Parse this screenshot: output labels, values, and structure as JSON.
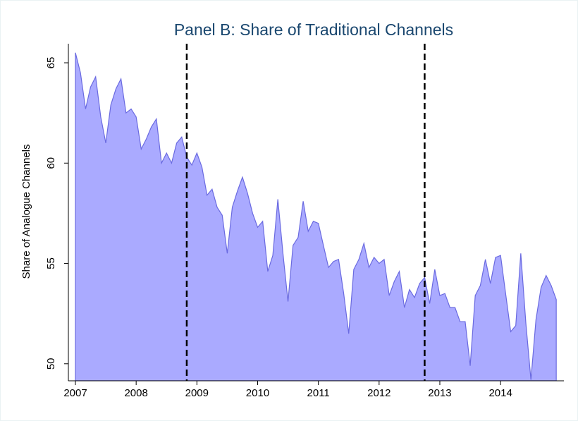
{
  "chart_data": {
    "type": "area",
    "title": "Panel B: Share of Traditional Channels",
    "y_label": "Share of Analogue Channels",
    "color": "#aaaaff",
    "line_color": "#6a6ae0",
    "x": [
      2007,
      2007.083,
      2007.167,
      2007.25,
      2007.333,
      2007.417,
      2007.5,
      2007.583,
      2007.667,
      2007.75,
      2007.833,
      2007.917,
      2008,
      2008.083,
      2008.167,
      2008.25,
      2008.333,
      2008.417,
      2008.5,
      2008.583,
      2008.667,
      2008.75,
      2008.833,
      2008.917,
      2009,
      2009.083,
      2009.167,
      2009.25,
      2009.333,
      2009.417,
      2009.5,
      2009.583,
      2009.667,
      2009.75,
      2009.833,
      2009.917,
      2010,
      2010.083,
      2010.167,
      2010.25,
      2010.333,
      2010.417,
      2010.5,
      2010.583,
      2010.667,
      2010.75,
      2010.833,
      2010.917,
      2011,
      2011.083,
      2011.167,
      2011.25,
      2011.333,
      2011.417,
      2011.5,
      2011.583,
      2011.667,
      2011.75,
      2011.833,
      2011.917,
      2012,
      2012.083,
      2012.167,
      2012.25,
      2012.333,
      2012.417,
      2012.5,
      2012.583,
      2012.667,
      2012.75,
      2012.833,
      2012.917,
      2013,
      2013.083,
      2013.167,
      2013.25,
      2013.333,
      2013.417,
      2013.5,
      2013.583,
      2013.667,
      2013.75,
      2013.833,
      2013.917,
      2014,
      2014.083,
      2014.167,
      2014.25,
      2014.333,
      2014.417,
      2014.5,
      2014.583,
      2014.667,
      2014.75,
      2014.833,
      2014.917
    ],
    "values": [
      65.5,
      64.5,
      62.7,
      63.8,
      64.3,
      62.3,
      61.0,
      62.9,
      63.7,
      64.2,
      62.5,
      62.7,
      62.3,
      60.7,
      61.2,
      61.8,
      62.2,
      60.0,
      60.5,
      60.0,
      61.0,
      61.3,
      60.3,
      59.9,
      60.5,
      59.8,
      58.4,
      58.7,
      57.8,
      57.4,
      55.5,
      57.8,
      58.6,
      59.3,
      58.5,
      57.5,
      56.8,
      57.1,
      54.6,
      55.4,
      58.2,
      55.5,
      53.1,
      55.9,
      56.3,
      58.1,
      56.6,
      57.1,
      57.0,
      55.9,
      54.8,
      55.1,
      55.2,
      53.5,
      51.5,
      54.7,
      55.2,
      56.0,
      54.8,
      55.3,
      55.0,
      55.2,
      53.4,
      54.1,
      54.6,
      52.8,
      53.7,
      53.3,
      54.0,
      54.3,
      53.0,
      54.7,
      53.4,
      53.5,
      52.8,
      52.8,
      52.1,
      52.1,
      49.9,
      53.4,
      53.9,
      55.2,
      54.0,
      55.3,
      55.4,
      53.5,
      51.6,
      51.9,
      55.5,
      52.0,
      49.2,
      52.2,
      53.8,
      54.4,
      53.9,
      53.2
    ],
    "reference_lines": [
      2008.833,
      2012.75
    ],
    "xlim": [
      2007,
      2014.95
    ],
    "xticks": [
      2007,
      2008,
      2009,
      2010,
      2011,
      2012,
      2013,
      2014
    ],
    "ylim": [
      49.15,
      65.95
    ],
    "yticks": [
      50,
      55,
      60,
      65
    ]
  }
}
